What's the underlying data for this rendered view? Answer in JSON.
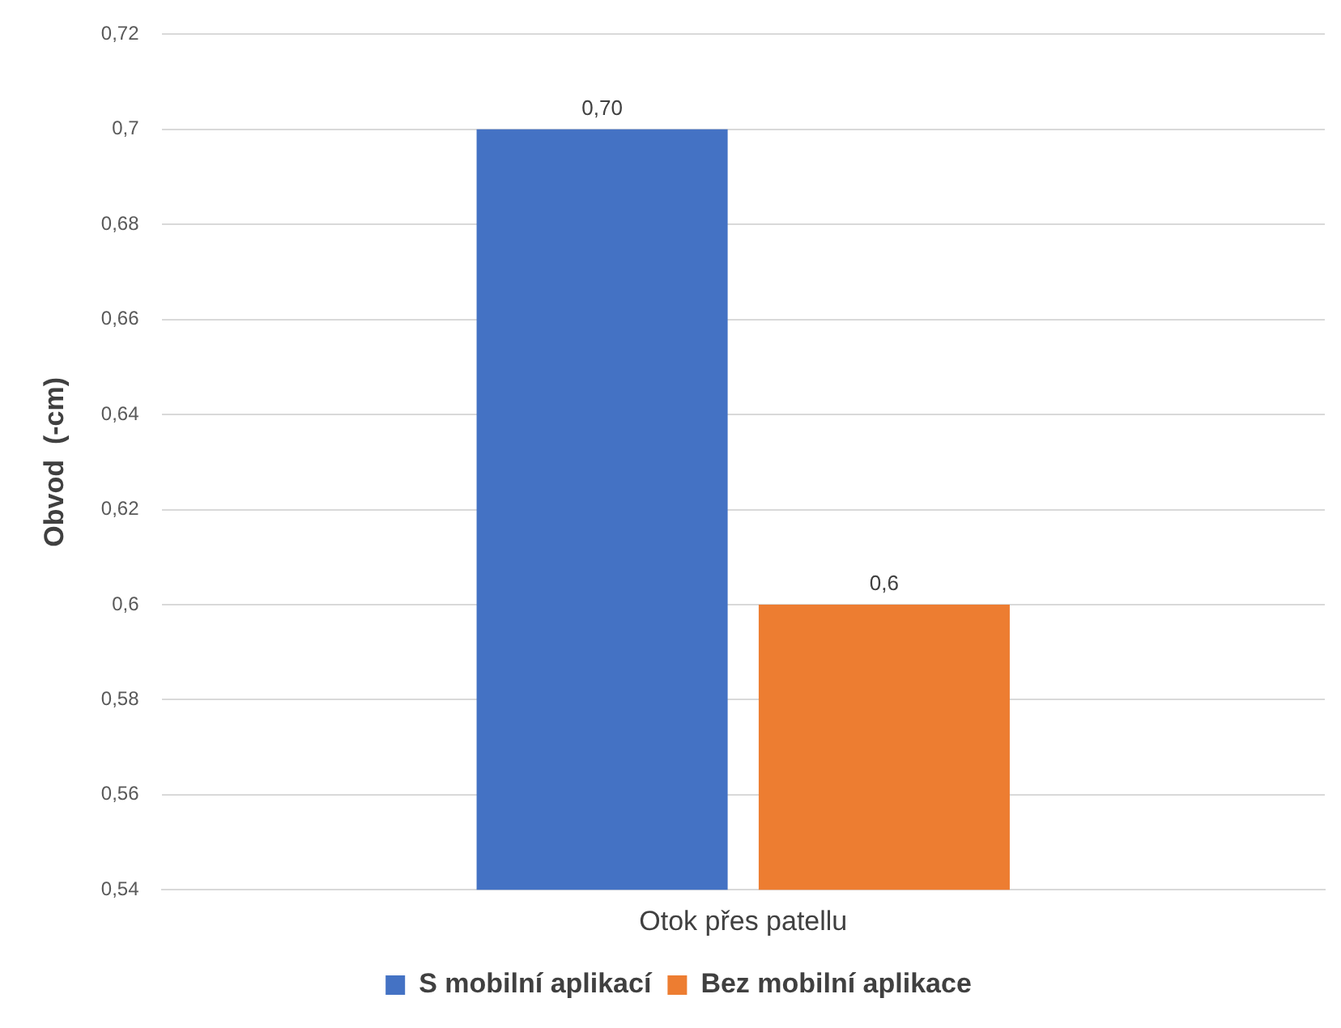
{
  "chart_data": {
    "type": "bar",
    "ylabel": "Obvod  (-cm)",
    "categories": [
      "Otok přes patellu"
    ],
    "series": [
      {
        "name": "S mobilní aplikací",
        "color": "#4472c4",
        "values": [
          0.7
        ],
        "value_labels": [
          "0,70"
        ]
      },
      {
        "name": "Bez mobilní aplikace",
        "color": "#ed7d31",
        "values": [
          0.6
        ],
        "value_labels": [
          "0,6"
        ]
      }
    ],
    "ylim": [
      0.54,
      0.72
    ],
    "yticks": [
      {
        "value": 0.54,
        "label": "0,54"
      },
      {
        "value": 0.56,
        "label": "0,56"
      },
      {
        "value": 0.58,
        "label": "0,58"
      },
      {
        "value": 0.6,
        "label": "0,6"
      },
      {
        "value": 0.62,
        "label": "0,62"
      },
      {
        "value": 0.64,
        "label": "0,64"
      },
      {
        "value": 0.66,
        "label": "0,66"
      },
      {
        "value": 0.68,
        "label": "0,68"
      },
      {
        "value": 0.7,
        "label": "0,7"
      },
      {
        "value": 0.72,
        "label": "0,72"
      }
    ],
    "grid": "y",
    "legend": "bottom"
  }
}
